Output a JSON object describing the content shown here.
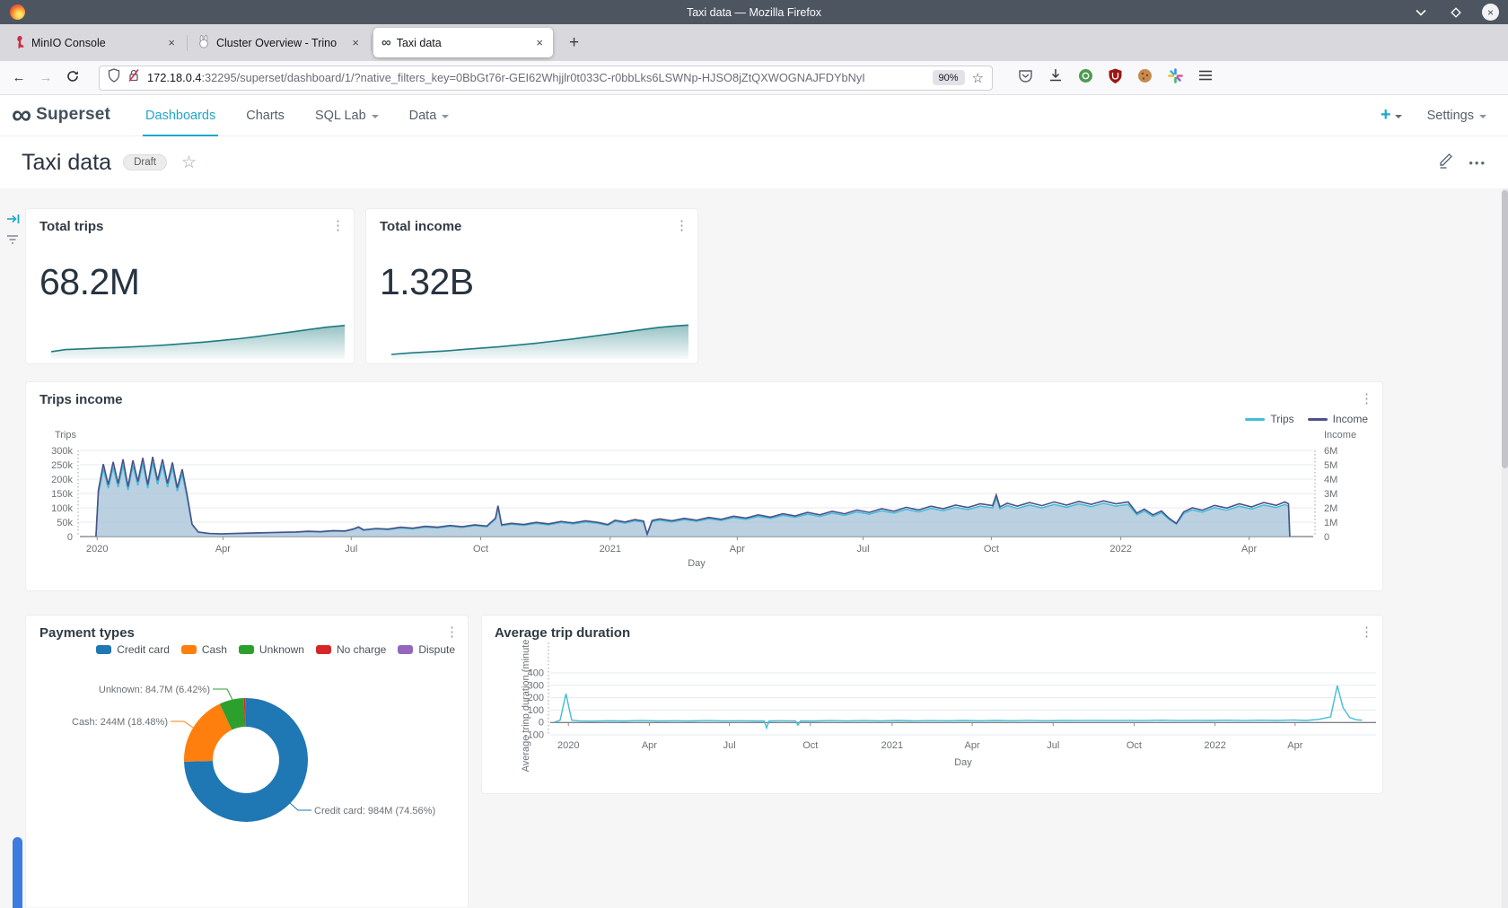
{
  "window": {
    "title": "Taxi data — Mozilla Firefox"
  },
  "tabs": [
    {
      "label": "MinIO Console"
    },
    {
      "label": "Cluster Overview - Trino"
    },
    {
      "label": "Taxi data",
      "active": true
    }
  ],
  "urlbar": {
    "url_host": "172.18.0.4",
    "url_rest": ":32295/superset/dashboard/1/?native_filters_key=0BbGt76r-GEI62Whjjlr0t033C-r0bbLks6LSWNp-HJSO8jZtQXWOGNAJFDYbNyI",
    "zoom_badge": "90%"
  },
  "app_nav": {
    "brand": "Superset",
    "items": [
      {
        "label": "Dashboards",
        "active": true
      },
      {
        "label": "Charts"
      },
      {
        "label": "SQL Lab",
        "caret": true
      },
      {
        "label": "Data",
        "caret": true
      }
    ],
    "plus_label": "+",
    "settings_label": "Settings"
  },
  "dashboard": {
    "title": "Taxi data",
    "badge": "Draft"
  },
  "chart_data": [
    {
      "type": "area",
      "title": "Total trips",
      "value": "68.2M",
      "line_color": "#1e7b80",
      "points": [
        [
          0,
          16
        ],
        [
          5,
          22
        ],
        [
          10,
          24
        ],
        [
          16,
          26
        ],
        [
          22,
          28
        ],
        [
          28,
          30
        ],
        [
          34,
          33
        ],
        [
          40,
          36
        ],
        [
          46,
          40
        ],
        [
          52,
          44
        ],
        [
          58,
          49
        ],
        [
          64,
          54
        ],
        [
          70,
          60
        ],
        [
          76,
          67
        ],
        [
          82,
          74
        ],
        [
          88,
          81
        ],
        [
          94,
          88
        ],
        [
          100,
          93
        ]
      ]
    },
    {
      "type": "area",
      "title": "Total income",
      "value": "1.32B",
      "line_color": "#1e7b80",
      "points": [
        [
          0,
          8
        ],
        [
          6,
          12
        ],
        [
          12,
          15
        ],
        [
          18,
          18
        ],
        [
          24,
          22
        ],
        [
          30,
          26
        ],
        [
          36,
          30
        ],
        [
          42,
          35
        ],
        [
          48,
          40
        ],
        [
          54,
          46
        ],
        [
          60,
          52
        ],
        [
          66,
          59
        ],
        [
          72,
          66
        ],
        [
          78,
          73
        ],
        [
          84,
          80
        ],
        [
          90,
          87
        ],
        [
          95,
          91
        ],
        [
          100,
          94
        ]
      ]
    },
    {
      "type": "line",
      "title": "Trips income",
      "xlabel": "Day",
      "ylabel_left": "Trips",
      "ylabel_right": "Income",
      "ylim_left": [
        0,
        300000
      ],
      "ylim_right": [
        0,
        6000000
      ],
      "yticks_left": [
        "300k",
        "250k",
        "200k",
        "150k",
        "100k",
        "50k",
        "0"
      ],
      "yticks_right": [
        "6M",
        "5M",
        "4M",
        "3M",
        "2M",
        "1M",
        "0"
      ],
      "xticks": [
        "2020",
        "Apr",
        "Jul",
        "Oct",
        "2021",
        "Apr",
        "Jul",
        "Oct",
        "2022",
        "Apr"
      ],
      "xtick_pos": [
        0.014,
        0.116,
        0.22,
        0.325,
        0.43,
        0.533,
        0.635,
        0.739,
        0.844,
        0.948
      ],
      "legend": [
        {
          "label": "Trips",
          "color": "#45bcd9"
        },
        {
          "label": "Income",
          "color": "#4c5287"
        }
      ],
      "area_fill": "#aac4da",
      "units": "points are [x_percent, trips, income_M]; trips in thousands, income in millions",
      "points": [
        [
          1.3,
          0,
          0
        ],
        [
          1.5,
          150,
          3.23
        ],
        [
          1.9,
          235,
          5.05
        ],
        [
          2.3,
          168,
          3.61
        ],
        [
          2.7,
          242,
          5.2
        ],
        [
          3.1,
          172,
          3.7
        ],
        [
          3.5,
          250,
          5.38
        ],
        [
          3.9,
          162,
          3.48
        ],
        [
          4.3,
          247,
          5.31
        ],
        [
          4.7,
          178,
          3.83
        ],
        [
          5.1,
          255,
          5.48
        ],
        [
          5.5,
          168,
          3.61
        ],
        [
          5.9,
          258,
          5.55
        ],
        [
          6.3,
          182,
          3.91
        ],
        [
          6.7,
          250,
          5.38
        ],
        [
          7.1,
          172,
          3.7
        ],
        [
          7.5,
          240,
          5.16
        ],
        [
          7.9,
          158,
          3.4
        ],
        [
          8.3,
          218,
          4.69
        ],
        [
          8.7,
          135,
          2.9
        ],
        [
          9.1,
          40,
          0.86
        ],
        [
          9.6,
          15,
          0.32
        ],
        [
          10.5,
          10,
          0.22
        ],
        [
          11.5,
          9,
          0.19
        ],
        [
          12.5,
          10,
          0.22
        ],
        [
          13.5,
          11,
          0.24
        ],
        [
          14.5,
          12,
          0.26
        ],
        [
          15.5,
          13,
          0.28
        ],
        [
          16.5,
          14,
          0.3
        ],
        [
          17.5,
          15,
          0.32
        ],
        [
          18.5,
          17,
          0.37
        ],
        [
          19.5,
          16,
          0.34
        ],
        [
          20.5,
          19,
          0.41
        ],
        [
          21.5,
          18,
          0.39
        ],
        [
          22.2,
          25,
          0.54
        ],
        [
          22.6,
          31,
          0.67
        ],
        [
          23,
          22,
          0.47
        ],
        [
          24,
          26,
          0.56
        ],
        [
          25,
          24,
          0.52
        ],
        [
          26,
          30,
          0.65
        ],
        [
          27,
          27,
          0.58
        ],
        [
          28,
          33,
          0.71
        ],
        [
          29,
          30,
          0.65
        ],
        [
          30,
          36,
          0.77
        ],
        [
          31,
          32,
          0.69
        ],
        [
          32,
          38,
          0.82
        ],
        [
          33,
          34,
          0.73
        ],
        [
          33.7,
          60,
          1.29
        ],
        [
          33.9,
          100,
          2.15
        ],
        [
          34.2,
          38,
          0.82
        ],
        [
          35,
          43,
          0.92
        ],
        [
          36,
          39,
          0.84
        ],
        [
          37,
          46,
          0.99
        ],
        [
          38,
          41,
          0.88
        ],
        [
          39,
          49,
          1.05
        ],
        [
          40,
          44,
          0.95
        ],
        [
          41,
          51,
          1.1
        ],
        [
          42,
          46,
          0.99
        ],
        [
          42.8,
          39,
          0.84
        ],
        [
          43.4,
          53,
          1.14
        ],
        [
          44.2,
          47,
          1.01
        ],
        [
          45,
          55,
          1.18
        ],
        [
          45.7,
          50,
          1.08
        ],
        [
          46,
          8,
          0.17
        ],
        [
          46.4,
          52,
          1.12
        ],
        [
          47,
          57,
          1.23
        ],
        [
          48,
          51,
          1.1
        ],
        [
          49,
          59,
          1.27
        ],
        [
          50,
          53,
          1.14
        ],
        [
          51,
          62,
          1.33
        ],
        [
          52,
          56,
          1.2
        ],
        [
          53,
          66,
          1.42
        ],
        [
          54,
          60,
          1.29
        ],
        [
          55,
          70,
          1.51
        ],
        [
          56,
          63,
          1.35
        ],
        [
          57,
          74,
          1.59
        ],
        [
          58,
          67,
          1.44
        ],
        [
          59,
          78,
          1.68
        ],
        [
          60,
          70,
          1.51
        ],
        [
          61,
          82,
          1.76
        ],
        [
          62,
          74,
          1.59
        ],
        [
          63,
          86,
          1.85
        ],
        [
          64,
          78,
          1.68
        ],
        [
          65,
          90,
          1.94
        ],
        [
          66,
          82,
          1.76
        ],
        [
          67,
          95,
          2.04
        ],
        [
          68,
          86,
          1.85
        ],
        [
          69,
          98,
          2.11
        ],
        [
          70,
          90,
          1.94
        ],
        [
          71,
          102,
          2.19
        ],
        [
          72,
          94,
          2.02
        ],
        [
          73,
          106,
          2.28
        ],
        [
          74,
          100,
          2.15
        ],
        [
          74.3,
          135,
          2.9
        ],
        [
          74.6,
          96,
          2.06
        ],
        [
          75.2,
          108,
          2.32
        ],
        [
          76,
          98,
          2.11
        ],
        [
          77,
          110,
          2.37
        ],
        [
          78,
          100,
          2.15
        ],
        [
          79,
          112,
          2.41
        ],
        [
          80,
          102,
          2.19
        ],
        [
          81,
          114,
          2.45
        ],
        [
          82,
          104,
          2.24
        ],
        [
          83,
          116,
          2.49
        ],
        [
          84,
          106,
          2.28
        ],
        [
          85,
          112,
          2.41
        ],
        [
          85.7,
          76,
          1.63
        ],
        [
          86.3,
          89,
          1.91
        ],
        [
          87,
          70,
          1.51
        ],
        [
          87.7,
          83,
          1.78
        ],
        [
          88.3,
          60,
          1.29
        ],
        [
          88.9,
          43,
          0.92
        ],
        [
          89.5,
          80,
          1.72
        ],
        [
          90.2,
          93,
          2
        ],
        [
          91,
          85,
          1.83
        ],
        [
          92,
          101,
          2.17
        ],
        [
          93,
          92,
          1.98
        ],
        [
          94,
          106,
          2.28
        ],
        [
          95,
          96,
          2.06
        ],
        [
          96,
          110,
          2.37
        ],
        [
          97,
          101,
          2.17
        ],
        [
          97.7,
          112,
          2.41
        ],
        [
          98,
          106,
          2.28
        ],
        [
          98.1,
          0,
          0
        ]
      ]
    },
    {
      "type": "pie",
      "donut": true,
      "title": "Payment types",
      "slices": [
        {
          "label": "Credit card",
          "color": "#1f77b4",
          "percent": 74.56,
          "value_label": "Credit card: 984M (74.56%)"
        },
        {
          "label": "Cash",
          "color": "#ff7f0e",
          "percent": 18.48,
          "value_label": "Cash: 244M (18.48%)"
        },
        {
          "label": "Unknown",
          "color": "#2ca02c",
          "percent": 6.42,
          "value_label": "Unknown: 84.7M (6.42%)"
        },
        {
          "label": "No charge",
          "color": "#d62728",
          "percent": 0.4,
          "value_label": "No charge"
        },
        {
          "label": "Dispute",
          "color": "#9467bd",
          "percent": 0.14,
          "value_label": "Dispute"
        }
      ]
    },
    {
      "type": "line",
      "title": "Average trip duration",
      "xlabel": "Day",
      "ylabel": "Average trinp duration (minute",
      "ylim": [
        -100,
        400
      ],
      "yticks": [
        400,
        300,
        200,
        100,
        0,
        -100
      ],
      "xticks": [
        "2020",
        "Apr",
        "Jul",
        "Oct",
        "2021",
        "Apr",
        "Jul",
        "Oct",
        "2022",
        "Apr"
      ],
      "xtick_pos": [
        0.022,
        0.12,
        0.217,
        0.315,
        0.414,
        0.511,
        0.609,
        0.707,
        0.805,
        0.902
      ],
      "color": "#45bcd9",
      "points": [
        [
          0.5,
          2
        ],
        [
          1.2,
          18
        ],
        [
          1.9,
          232
        ],
        [
          2.6,
          18
        ],
        [
          3.5,
          13
        ],
        [
          5,
          11
        ],
        [
          7,
          14
        ],
        [
          9,
          12
        ],
        [
          11,
          15
        ],
        [
          13,
          12
        ],
        [
          15,
          14
        ],
        [
          17,
          12
        ],
        [
          19,
          15
        ],
        [
          21,
          13
        ],
        [
          23,
          14
        ],
        [
          25,
          12
        ],
        [
          25.9,
          13
        ],
        [
          26.2,
          -45
        ],
        [
          26.5,
          12
        ],
        [
          28,
          14
        ],
        [
          29.7,
          13
        ],
        [
          30,
          -22
        ],
        [
          30.3,
          13
        ],
        [
          32,
          12
        ],
        [
          34,
          15
        ],
        [
          36,
          13
        ],
        [
          38,
          15
        ],
        [
          40,
          13
        ],
        [
          42,
          16
        ],
        [
          44,
          13
        ],
        [
          46,
          15
        ],
        [
          48,
          14
        ],
        [
          50,
          16
        ],
        [
          52,
          14
        ],
        [
          54,
          16
        ],
        [
          56,
          14
        ],
        [
          58,
          17
        ],
        [
          60,
          14
        ],
        [
          62,
          16
        ],
        [
          64,
          15
        ],
        [
          66,
          17
        ],
        [
          68,
          15
        ],
        [
          70,
          17
        ],
        [
          72,
          15
        ],
        [
          74,
          18
        ],
        [
          76,
          15
        ],
        [
          78,
          17
        ],
        [
          80,
          16
        ],
        [
          82,
          18
        ],
        [
          84,
          15
        ],
        [
          86,
          18
        ],
        [
          88,
          16
        ],
        [
          90,
          20
        ],
        [
          91.5,
          16
        ],
        [
          93,
          25
        ],
        [
          94.5,
          45
        ],
        [
          95.3,
          298
        ],
        [
          96,
          120
        ],
        [
          96.8,
          40
        ],
        [
          97.6,
          22
        ],
        [
          98.3,
          18
        ]
      ]
    }
  ]
}
